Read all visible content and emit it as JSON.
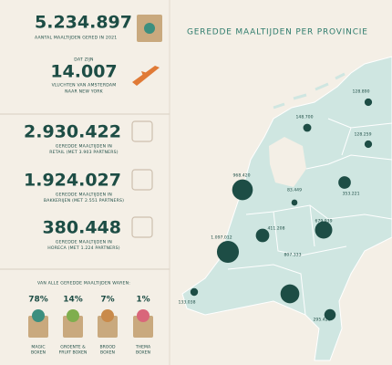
{
  "summary": {
    "total": "5.234.897",
    "total_label": "AANTAL MAALTIJDEN GERED IN 2021",
    "intro": "DAT ZIJN",
    "flights": "14.007",
    "flights_label": [
      "VLUCHTEN VAN AMSTERDAM",
      "NAAR NEW YORK"
    ]
  },
  "sectors": [
    {
      "value": "2.930.422",
      "label": [
        "GEREDDE MAALTIJDEN IN",
        "RETAIL (MET 3.903 PARTNERS)"
      ]
    },
    {
      "value": "1.924.027",
      "label": [
        "GEREDDE MAALTIJDEN IN",
        "BAKKERIJEN (MET 2.551 PARTNERS)"
      ]
    },
    {
      "value": "380.448",
      "label": [
        "GEREDDE MAALTIJDEN IN",
        "HORECA (MET 1.224 PARTNERS)"
      ]
    }
  ],
  "boxes": {
    "heading": "VAN ALLE GEREDDE MAALTIJDEN WAREN:",
    "items": [
      {
        "percent": "78%",
        "label": [
          "MAGIC",
          "BOXEN"
        ]
      },
      {
        "percent": "14%",
        "label": [
          "GROENTE &",
          "FRUIT BOXEN"
        ]
      },
      {
        "percent": "7%",
        "label": [
          "BROOD",
          "BOXEN"
        ]
      },
      {
        "percent": "1%",
        "label": [
          "THEMA",
          "BOXEN"
        ]
      }
    ]
  },
  "map": {
    "title": "GEREDDE MAALTIJDEN PER PROVINCIE",
    "values": [
      128890,
      148700,
      128259,
      968420,
      83449,
      353221,
      411208,
      679939,
      1097012,
      807333,
      133038,
      295421
    ],
    "value_labels": [
      "128.890",
      "148.700",
      "128.259",
      "968.420",
      "83.449",
      "353.221",
      "411.208",
      "679.939",
      "1.097.012",
      "807.333",
      "133.038",
      "295.421"
    ]
  }
}
